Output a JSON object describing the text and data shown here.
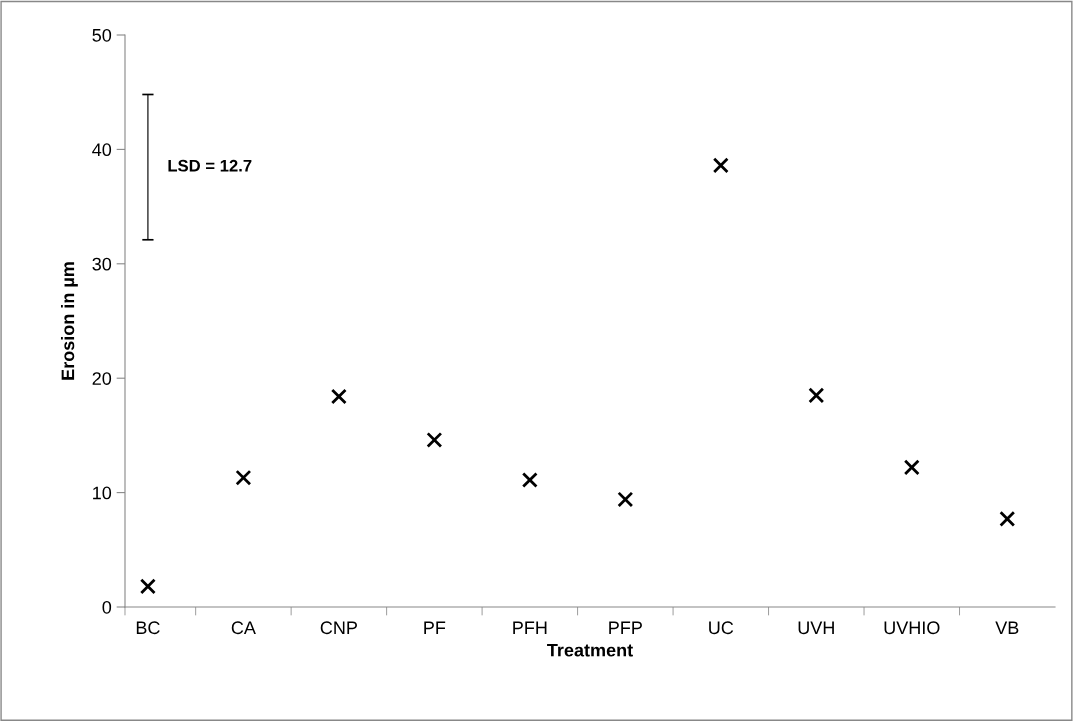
{
  "chart_data": {
    "type": "scatter",
    "xlabel": "Treatment",
    "ylabel": "Erosion in µm",
    "categories": [
      "BC",
      "CA",
      "CNP",
      "PF",
      "PFH",
      "PFP",
      "UC",
      "UVH",
      "UVHIO",
      "VB"
    ],
    "series": [
      {
        "color": "#000000",
        "marker": "cross",
        "values": [
          1.8,
          11.3,
          18.4,
          14.6,
          11.1,
          9.4,
          38.6,
          18.5,
          12.2,
          7.7
        ]
      },
      {
        "type": "bar",
        "color": "#000000",
        "base": [
          32.1,
          null,
          null,
          null,
          null,
          null,
          null,
          null,
          null,
          null
        ],
        "values": [
          12.7,
          null,
          null,
          null,
          null,
          null,
          null,
          null,
          null,
          null
        ]
      }
    ],
    "annotations": [
      "LSD = 12.7"
    ],
    "ylim": [
      0,
      50
    ],
    "yticks": [
      0,
      10,
      20,
      30,
      40,
      50
    ],
    "grid": false,
    "legend": false
  }
}
